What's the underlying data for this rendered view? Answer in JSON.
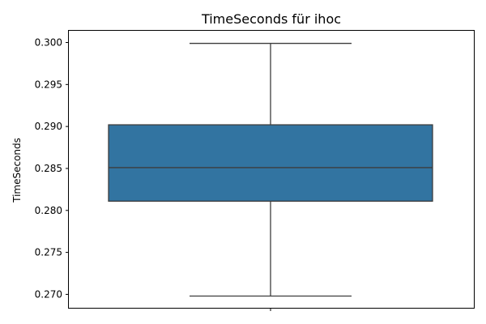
{
  "chart_data": {
    "type": "box",
    "title": "TimeSeconds für ihoc",
    "ylabel": "TimeSeconds",
    "xlabel": "",
    "ylim": [
      0.2684,
      0.3014
    ],
    "yticks": [
      "0.270",
      "0.275",
      "0.280",
      "0.285",
      "0.290",
      "0.295",
      "0.300"
    ],
    "box": {
      "whisker_low": 0.2698,
      "q1": 0.2811,
      "median": 0.2851,
      "q3": 0.2902,
      "whisker_high": 0.2999
    },
    "box_color": "#3274a1",
    "line_color": "#3d3d3d",
    "grid": false
  }
}
